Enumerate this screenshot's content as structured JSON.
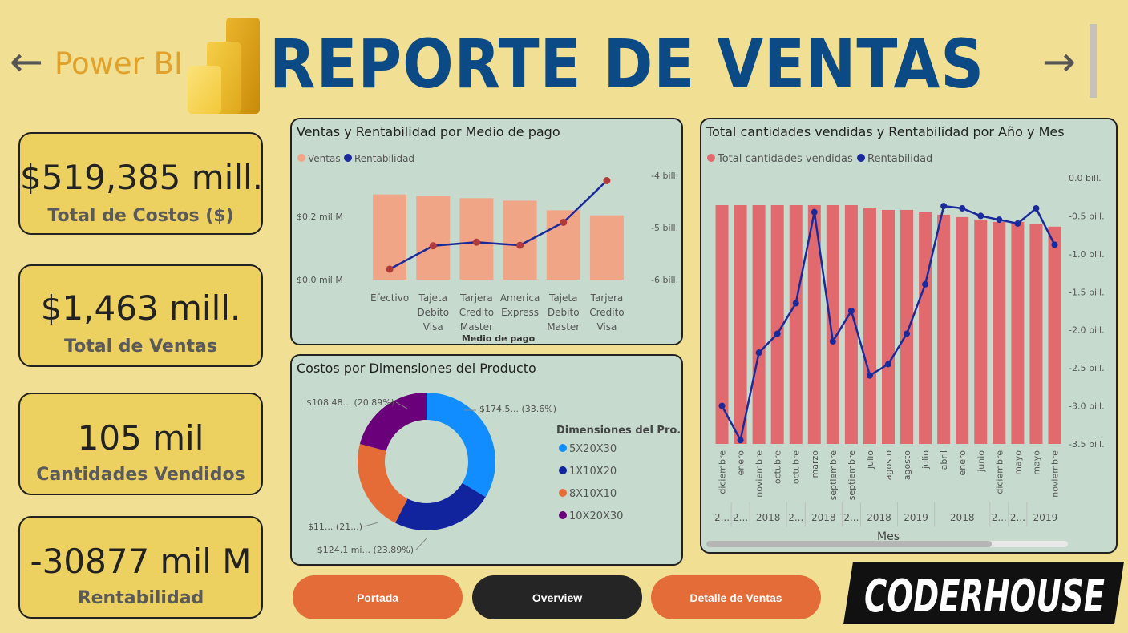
{
  "header": {
    "brand_label": "Power BI",
    "title": "REPORTE DE VENTAS",
    "back_arrow": "←",
    "forward_arrow": "→",
    "brand_logo_icon": "power-bi-logo-icon",
    "colors": {
      "title": "#0b4a85",
      "brand": "#e1a12b",
      "background": "#f1e093"
    }
  },
  "kpis": [
    {
      "value": "$519,385 mill.",
      "label": "Total de Costos ($)"
    },
    {
      "value": "$1,463 mill.",
      "label": "Total de Ventas"
    },
    {
      "value": "105 mil",
      "label": "Cantidades Vendidos"
    },
    {
      "value": "-30877 mil M",
      "label": "Rentabilidad"
    }
  ],
  "chart_data": [
    {
      "type": "bar",
      "combo": "bar+line",
      "title": "Ventas y Rentabilidad por Medio de pago",
      "xlabel": "Medio de pago",
      "legend": [
        "Ventas",
        "Rentabilidad"
      ],
      "legend_position": "top-left",
      "categories": [
        [
          "Efectivo"
        ],
        [
          "Tajeta",
          "Debito",
          "Visa"
        ],
        [
          "Tarjera",
          "Credito",
          "Master"
        ],
        [
          "America",
          "Express"
        ],
        [
          "Tajeta",
          "Debito",
          "Master"
        ],
        [
          "Tarjera",
          "Credito",
          "Visa"
        ]
      ],
      "y_left_ticks": [
        "$0.2 mil M",
        "$0.0 mil M"
      ],
      "y_left_range": [
        0,
        0.33
      ],
      "y_right_ticks": [
        "-4 bill.",
        "-5 bill.",
        "-6 bill."
      ],
      "y_right_range": [
        -6,
        -4
      ],
      "series": [
        {
          "name": "Ventas",
          "axis": "left",
          "values": [
            0.27,
            0.265,
            0.258,
            0.25,
            0.22,
            0.204
          ]
        },
        {
          "name": "Rentabilidad",
          "axis": "right",
          "values": [
            -5.8,
            -5.35,
            -5.28,
            -5.34,
            -4.9,
            -4.1
          ]
        }
      ],
      "colors": {
        "Ventas": "#f0a586",
        "Rentabilidad": "#1b2a9b",
        "markers": "#b23a3a"
      },
      "grid": false
    },
    {
      "type": "pie",
      "donut": true,
      "title": "Costos por Dimensiones del Producto",
      "legend_title": "Dimensiones del Pro...",
      "legend_position": "right",
      "slices": [
        {
          "name": "5X20X30",
          "value": 33.6,
          "label": "$174.5... (33.6%)",
          "color": "#118dff"
        },
        {
          "name": "1X10X20",
          "value": 23.89,
          "label": "$124.1 mi... (23.89%)",
          "color": "#12239e"
        },
        {
          "name": "8X10X10",
          "value": 21.62,
          "label": "$11... (21...)",
          "color": "#e66c37"
        },
        {
          "name": "10X20X30",
          "value": 20.89,
          "label": "$108.48... (20.89%)",
          "color": "#6b007b"
        }
      ]
    },
    {
      "type": "bar",
      "combo": "bar+line",
      "title": "Total cantidades vendidas y Rentabilidad por Año y Mes",
      "xlabel": "Mes",
      "legend": [
        "Total cantidades vendidas",
        "Rentabilidad"
      ],
      "legend_position": "top-left",
      "months": [
        "diciembre",
        "enero",
        "noviembre",
        "octubre",
        "octubre",
        "marzo",
        "septiembre",
        "septiembre",
        "julio",
        "agosto",
        "agosto",
        "julio",
        "abril",
        "enero",
        "junio",
        "diciembre",
        "mayo",
        "mayo",
        "noviembre"
      ],
      "years": [
        {
          "label": "2...",
          "start": 0,
          "count": 1
        },
        {
          "label": "2...",
          "start": 1,
          "count": 1
        },
        {
          "label": "2018",
          "start": 2,
          "count": 2
        },
        {
          "label": "2...",
          "start": 4,
          "count": 1
        },
        {
          "label": "2018",
          "start": 5,
          "count": 2
        },
        {
          "label": "2...",
          "start": 7,
          "count": 1
        },
        {
          "label": "2018",
          "start": 8,
          "count": 2
        },
        {
          "label": "2019",
          "start": 10,
          "count": 2
        },
        {
          "label": "2018",
          "start": 12,
          "count": 3
        },
        {
          "label": "2...",
          "start": 15,
          "count": 1
        },
        {
          "label": "2...",
          "start": 16,
          "count": 1
        },
        {
          "label": "2019",
          "start": 17,
          "count": 2
        }
      ],
      "y_right_ticks": [
        "0.0 bill.",
        "-0.5 bill.",
        "-1.0 bill.",
        "-1.5 bill.",
        "-2.0 bill.",
        "-2.5 bill.",
        "-3.0 bill.",
        "-3.5 bill."
      ],
      "y_right_range": [
        -3.5,
        0
      ],
      "series": [
        {
          "name": "Total cantidades vendidas",
          "axis": "left",
          "values": [
            100,
            100,
            100,
            100,
            100,
            100,
            100,
            100,
            99,
            98,
            98,
            97,
            96,
            95,
            94,
            93,
            93,
            92,
            91
          ]
        },
        {
          "name": "Rentabilidad",
          "axis": "right",
          "values": [
            -3.0,
            -3.45,
            -2.3,
            -2.05,
            -1.65,
            -0.45,
            -2.15,
            -1.75,
            -2.6,
            -2.45,
            -2.05,
            -1.4,
            -0.37,
            -0.4,
            -0.5,
            -0.55,
            -0.6,
            -0.4,
            -0.88
          ]
        }
      ],
      "colors": {
        "Total cantidades vendidas": "#e06a6e",
        "Rentabilidad": "#1b2a9b"
      },
      "grid": false
    }
  ],
  "buttons": {
    "portada": "Portada",
    "overview": "Overview",
    "detalle": "Detalle de Ventas"
  },
  "footer": {
    "coderhouse_logo": "CODERHOUSE"
  }
}
